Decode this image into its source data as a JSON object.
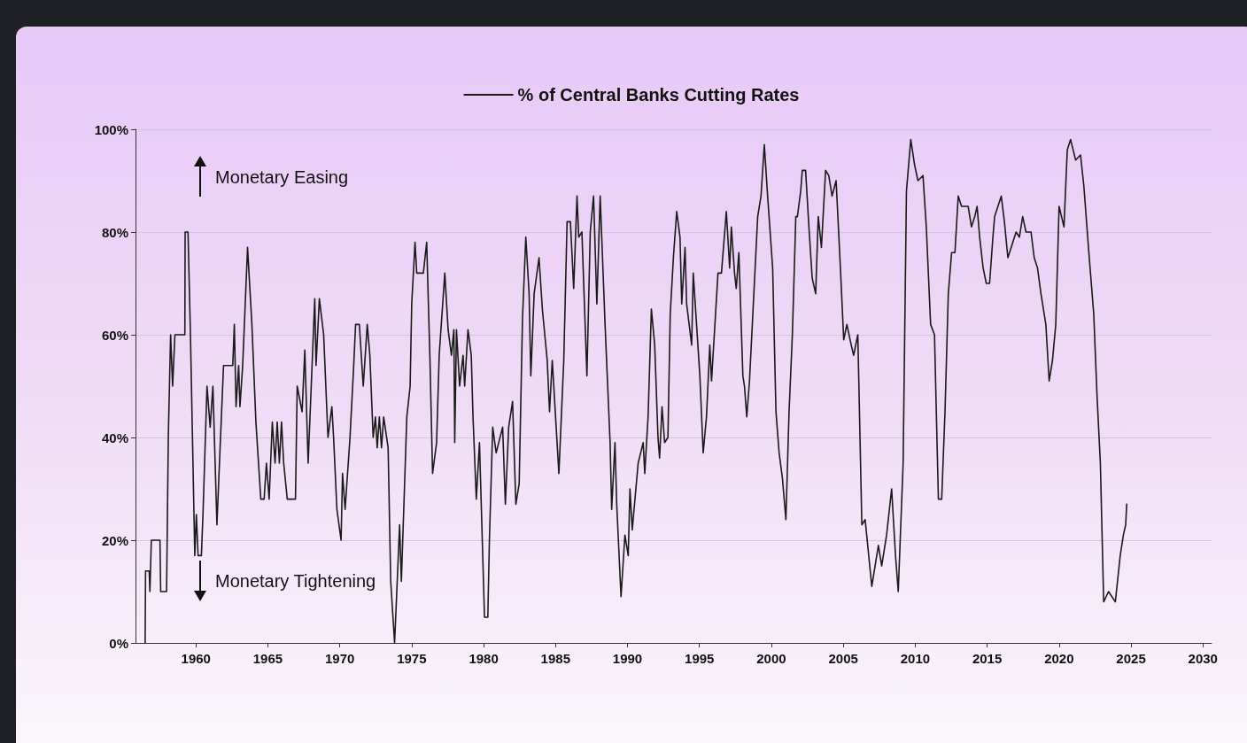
{
  "chart_data": {
    "type": "line",
    "annotations": [
      "Monetary Easing",
      "Monetary Tightening"
    ],
    "series": [
      {
        "name": "% of Central Banks Cutting Rates",
        "color": "#1a1a1a",
        "x": [
          1956.47,
          1956.5,
          1956.75,
          1956.8,
          1956.9,
          1957.5,
          1957.55,
          1957.96,
          1958.08,
          1958.24,
          1958.38,
          1958.54,
          1959.23,
          1959.25,
          1959.45,
          1959.62,
          1959.92,
          1960.03,
          1960.15,
          1960.38,
          1960.49,
          1960.77,
          1960.99,
          1961.18,
          1961.46,
          1961.68,
          1961.92,
          1962.56,
          1962.67,
          1962.79,
          1962.97,
          1963.06,
          1963.25,
          1963.59,
          1963.89,
          1964.17,
          1964.51,
          1964.74,
          1964.9,
          1965.09,
          1965.31,
          1965.5,
          1965.65,
          1965.8,
          1965.95,
          1966.1,
          1966.35,
          1966.92,
          1967.04,
          1967.38,
          1967.57,
          1967.8,
          1968.26,
          1968.35,
          1968.58,
          1968.88,
          1969.18,
          1969.45,
          1969.57,
          1969.8,
          1970.09,
          1970.19,
          1970.37,
          1970.71,
          1970.95,
          1971.1,
          1971.36,
          1971.63,
          1971.91,
          1972.09,
          1972.32,
          1972.48,
          1972.6,
          1972.75,
          1972.9,
          1973.05,
          1973.36,
          1973.54,
          1973.81,
          1974.16,
          1974.28,
          1974.66,
          1974.89,
          1975.0,
          1975.23,
          1975.35,
          1975.81,
          1976.04,
          1976.27,
          1976.45,
          1976.73,
          1976.91,
          1977.3,
          1977.53,
          1977.76,
          1977.93,
          1977.99,
          1978.11,
          1978.33,
          1978.57,
          1978.68,
          1978.91,
          1979.14,
          1979.26,
          1979.49,
          1979.71,
          1980.06,
          1980.29,
          1980.4,
          1980.63,
          1980.87,
          1981.32,
          1981.51,
          1981.74,
          1982.01,
          1982.24,
          1982.47,
          1982.7,
          1982.93,
          1983.16,
          1983.28,
          1983.51,
          1983.85,
          1984.08,
          1984.42,
          1984.58,
          1984.77,
          1985.23,
          1985.57,
          1985.8,
          1986.03,
          1986.26,
          1986.49,
          1986.61,
          1986.83,
          1987.18,
          1987.41,
          1987.64,
          1987.87,
          1988.1,
          1988.44,
          1988.79,
          1988.9,
          1989.13,
          1989.25,
          1989.55,
          1989.82,
          1990.05,
          1990.17,
          1990.33,
          1990.74,
          1991.09,
          1991.2,
          1991.43,
          1991.66,
          1991.89,
          1992.12,
          1992.23,
          1992.4,
          1992.58,
          1992.81,
          1992.97,
          1993.19,
          1993.42,
          1993.65,
          1993.77,
          1994.0,
          1994.11,
          1994.46,
          1994.57,
          1994.8,
          1995.03,
          1995.26,
          1995.49,
          1995.72,
          1995.84,
          1996.29,
          1996.53,
          1996.87,
          1997.1,
          1997.22,
          1997.44,
          1997.56,
          1997.74,
          1998.02,
          1998.13,
          1998.29,
          1998.48,
          1999.05,
          1999.28,
          1999.51,
          1999.74,
          2000.09,
          2000.32,
          2000.54,
          2000.77,
          2001.01,
          2001.23,
          2001.46,
          2001.7,
          2001.81,
          2002.04,
          2002.15,
          2002.38,
          2002.61,
          2002.84,
          2003.08,
          2003.26,
          2003.48,
          2003.77,
          2003.99,
          2004.22,
          2004.5,
          2004.8,
          2005.03,
          2005.25,
          2005.55,
          2005.72,
          2006.01,
          2006.29,
          2006.52,
          2006.98,
          2007.21,
          2007.44,
          2007.67,
          2008.01,
          2008.36,
          2008.63,
          2008.82,
          2009.16,
          2009.39,
          2009.69,
          2009.96,
          2010.19,
          2010.54,
          2010.77,
          2011.07,
          2011.34,
          2011.61,
          2011.84,
          2012.07,
          2012.3,
          2012.53,
          2012.76,
          2012.99,
          2013.22,
          2013.68,
          2013.91,
          2014.14,
          2014.3,
          2014.48,
          2014.72,
          2014.94,
          2015.17,
          2015.4,
          2015.52,
          2015.98,
          2016.2,
          2016.44,
          2016.67,
          2017.01,
          2017.24,
          2017.47,
          2017.7,
          2018.05,
          2018.27,
          2018.5,
          2018.74,
          2019.08,
          2019.31,
          2019.54,
          2019.77,
          2020.0,
          2020.34,
          2020.57,
          2020.8,
          2021.15,
          2021.49,
          2021.72,
          2022.07,
          2022.41,
          2022.64,
          2022.87,
          2023.1,
          2023.44,
          2023.91,
          2024.25,
          2024.47,
          2024.63,
          2024.7
        ],
        "values": [
          0,
          14,
          14,
          10,
          20,
          20,
          10,
          10,
          40,
          60,
          50,
          60,
          60,
          80,
          80,
          60,
          17,
          25,
          17,
          17,
          25,
          50,
          42,
          50,
          23,
          38,
          54,
          54,
          62,
          46,
          54,
          46,
          54,
          77,
          62,
          43,
          28,
          28,
          35,
          28,
          43,
          35,
          43,
          35,
          43,
          35,
          28,
          28,
          50,
          45,
          57,
          35,
          67,
          54,
          67,
          60,
          40,
          46,
          40,
          26,
          20,
          33,
          26,
          40,
          53,
          62,
          62,
          50,
          62,
          56,
          40,
          44,
          38,
          44,
          38,
          44,
          38,
          12,
          0,
          23,
          12,
          44,
          50,
          66,
          78,
          72,
          72,
          78,
          55,
          33,
          39,
          56,
          72,
          61,
          56,
          61,
          39,
          61,
          50,
          56,
          50,
          61,
          56,
          44,
          28,
          39,
          5,
          5,
          20,
          42,
          37,
          42,
          27,
          42,
          47,
          27,
          31,
          63,
          79,
          68,
          52,
          68,
          75,
          65,
          55,
          45,
          55,
          33,
          55,
          82,
          82,
          69,
          87,
          79,
          80,
          52,
          80,
          87,
          66,
          87,
          62,
          39,
          26,
          39,
          27,
          9,
          21,
          17,
          30,
          22,
          35,
          39,
          33,
          44,
          65,
          58,
          40,
          36,
          46,
          39,
          40,
          64,
          75,
          84,
          79,
          66,
          77,
          66,
          58,
          72,
          62,
          52,
          37,
          44,
          58,
          51,
          72,
          72,
          84,
          73,
          81,
          72,
          69,
          76,
          52,
          50,
          44,
          51,
          83,
          87,
          97,
          87,
          73,
          45,
          37,
          32,
          24,
          45,
          60,
          83,
          83,
          88,
          92,
          92,
          81,
          71,
          68,
          83,
          77,
          92,
          91,
          87,
          90,
          73,
          59,
          62,
          58,
          56,
          60,
          23,
          24,
          11,
          15,
          19,
          15,
          21,
          30,
          17,
          10,
          35,
          88,
          98,
          93,
          90,
          91,
          81,
          62,
          60,
          28,
          28,
          45,
          68,
          76,
          76,
          87,
          85,
          85,
          81,
          83,
          85,
          79,
          73,
          70,
          70,
          79,
          83,
          87,
          82,
          75,
          77,
          80,
          79,
          83,
          80,
          80,
          75,
          73,
          68,
          62,
          51,
          55,
          62,
          85,
          81,
          96,
          98,
          94,
          95,
          89,
          76,
          64,
          48,
          35,
          8,
          10,
          8,
          17,
          21,
          23,
          27
        ]
      }
    ],
    "xlim": [
      1955.8,
      2030.6
    ],
    "xticks": [
      1960,
      1965,
      1970,
      1975,
      1980,
      1985,
      1990,
      1995,
      2000,
      2005,
      2010,
      2015,
      2020,
      2025,
      2030
    ],
    "ylim": [
      0,
      100
    ],
    "yticks": [
      {
        "value": 0,
        "label": "0%"
      },
      {
        "value": 20,
        "label": "20%"
      },
      {
        "value": 40,
        "label": "40%"
      },
      {
        "value": 60,
        "label": "60%"
      },
      {
        "value": 80,
        "label": "80%"
      },
      {
        "value": 100,
        "label": "100%"
      }
    ],
    "grid": "y",
    "legend": "top",
    "marker": "none",
    "line_style": "solid"
  }
}
